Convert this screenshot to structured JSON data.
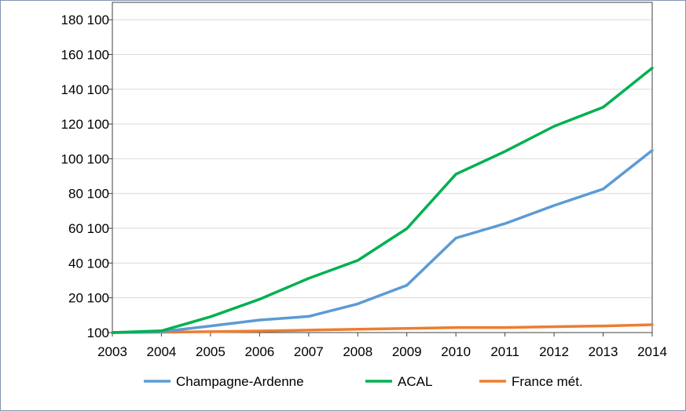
{
  "chart_data": {
    "type": "line",
    "x": [
      "2003",
      "2004",
      "2005",
      "2006",
      "2007",
      "2008",
      "2009",
      "2010",
      "2011",
      "2012",
      "2013",
      "2014"
    ],
    "y_ticks": [
      "100",
      "20 100",
      "40 100",
      "60 100",
      "80 100",
      "100 100",
      "120 100",
      "140 100",
      "160 100",
      "180 100"
    ],
    "ylim": [
      100,
      190100
    ],
    "grid": true,
    "legend_position": "bottom",
    "series": [
      {
        "name": "Champagne-Ardenne",
        "color": "#5b9bd5",
        "values": [
          100,
          600,
          3900,
          7300,
          9400,
          16600,
          27300,
          54500,
          62800,
          73200,
          82700,
          104900
        ]
      },
      {
        "name": "ACAL",
        "color": "#00b050",
        "values": [
          100,
          1100,
          9200,
          19300,
          31300,
          41600,
          59900,
          91200,
          104300,
          118800,
          129700,
          152300
        ]
      },
      {
        "name": "France mét.",
        "color": "#ed7d31",
        "values": [
          100,
          300,
          600,
          1000,
          1500,
          2000,
          2500,
          3000,
          3000,
          3500,
          3900,
          4600
        ]
      }
    ]
  }
}
